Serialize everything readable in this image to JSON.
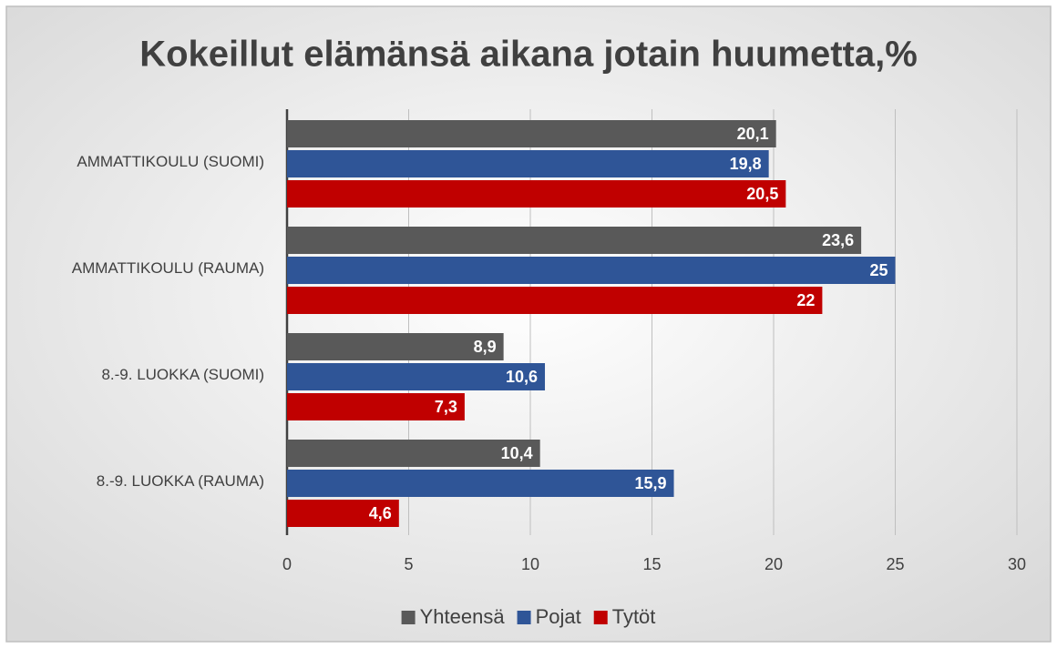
{
  "chart_data": {
    "type": "bar",
    "orientation": "horizontal",
    "title": "Kokeillut elämänsä aikana jotain huumetta,%",
    "categories": [
      "AMMATTIKOULU (SUOMI)",
      "AMMATTIKOULU (RAUMA)",
      "8.-9. LUOKKA (SUOMI)",
      "8.-9. LUOKKA (RAUMA)"
    ],
    "series": [
      {
        "name": "Yhteensä",
        "color": "#595959",
        "values": [
          20.1,
          23.6,
          8.9,
          10.4
        ],
        "value_labels": [
          "20,1",
          "23,6",
          "8,9",
          "10,4"
        ]
      },
      {
        "name": "Pojat",
        "color": "#2f5597",
        "values": [
          19.8,
          25,
          10.6,
          15.9
        ],
        "value_labels": [
          "19,8",
          "25",
          "10,6",
          "15,9"
        ]
      },
      {
        "name": "Tytöt",
        "color": "#c00000",
        "values": [
          20.5,
          22,
          7.3,
          4.6
        ],
        "value_labels": [
          "20,5",
          "22",
          "7,3",
          "4,6"
        ]
      }
    ],
    "xlim": [
      0,
      30
    ],
    "xticks": [
      0,
      5,
      10,
      15,
      20,
      25,
      30
    ],
    "grid": true,
    "legend": "bottom"
  }
}
